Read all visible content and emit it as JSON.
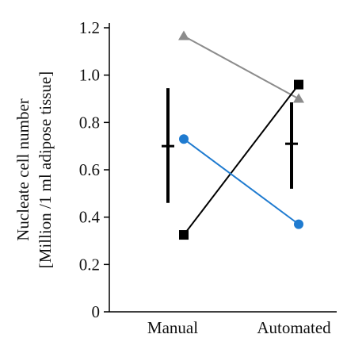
{
  "chart_data": {
    "type": "scatter",
    "categories": [
      "Manual",
      "Automated"
    ],
    "ylabel_lines": [
      "Nucleate cell number",
      "[Million /1 ml adipose tissue]"
    ],
    "ylim": [
      0,
      1.2
    ],
    "yticks": [
      0,
      0.2,
      0.4,
      0.6,
      0.8,
      1.0,
      1.2
    ],
    "ytick_labels": [
      "0",
      "0.2",
      "0.4",
      "0.6",
      "0.8",
      "1.0",
      "1.2"
    ],
    "grid": false,
    "series": [
      {
        "marker": "triangle",
        "color": "#8c8c8c",
        "values": [
          1.165,
          0.9
        ]
      },
      {
        "marker": "square",
        "color": "#000000",
        "values": [
          0.325,
          0.96
        ]
      },
      {
        "marker": "circle",
        "color": "#1f7bd0",
        "values": [
          0.73,
          0.37
        ]
      }
    ],
    "summary": [
      {
        "category": "Manual",
        "mean": 0.7,
        "low": 0.46,
        "high": 0.945
      },
      {
        "category": "Automated",
        "mean": 0.71,
        "low": 0.52,
        "high": 0.885
      }
    ]
  }
}
